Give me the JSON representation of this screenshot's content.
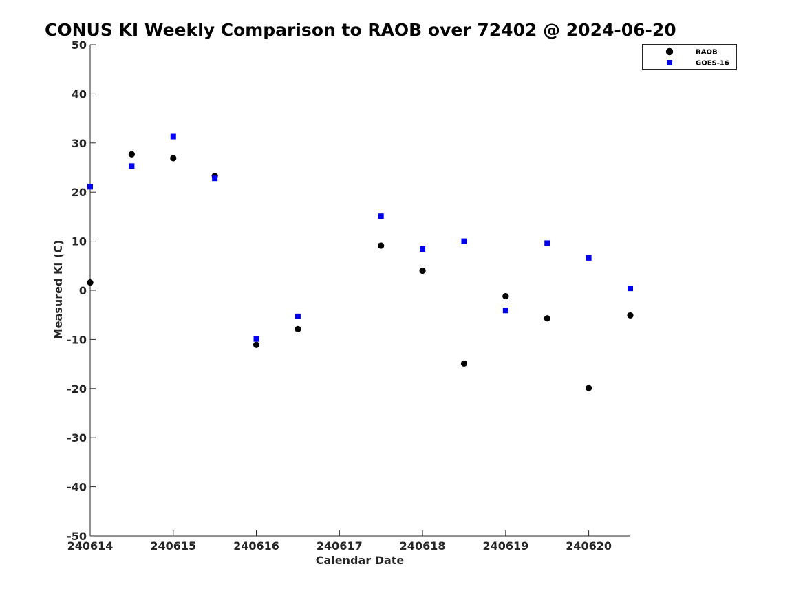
{
  "chart_data": {
    "type": "scatter",
    "title": "CONUS KI Weekly Comparison to RAOB over 72402 @ 2024-06-20",
    "xlabel": "Calendar Date",
    "ylabel": "Measured KI (C)",
    "xlim": [
      240614,
      240620.5
    ],
    "ylim": [
      -50,
      50
    ],
    "x_ticks": [
      {
        "value": 240614,
        "label": "240614"
      },
      {
        "value": 240615,
        "label": "240615"
      },
      {
        "value": 240616,
        "label": "240616"
      },
      {
        "value": 240617,
        "label": "240617"
      },
      {
        "value": 240618,
        "label": "240618"
      },
      {
        "value": 240619,
        "label": "240619"
      },
      {
        "value": 240620,
        "label": "240620"
      }
    ],
    "y_ticks": [
      {
        "value": 50,
        "label": "50"
      },
      {
        "value": 40,
        "label": "40"
      },
      {
        "value": 30,
        "label": "30"
      },
      {
        "value": 20,
        "label": "20"
      },
      {
        "value": 10,
        "label": "10"
      },
      {
        "value": 0,
        "label": "0"
      },
      {
        "value": -10,
        "label": "-10"
      },
      {
        "value": -20,
        "label": "-20"
      },
      {
        "value": -30,
        "label": "-30"
      },
      {
        "value": -40,
        "label": "-40"
      },
      {
        "value": -50,
        "label": "-50"
      }
    ],
    "grid": false,
    "legend_position": "top-right",
    "series": [
      {
        "name": "RAOB",
        "marker": "circle",
        "color": "#000000",
        "points": [
          {
            "x": 240614.0,
            "y": 1.6
          },
          {
            "x": 240614.5,
            "y": 27.7
          },
          {
            "x": 240615.0,
            "y": 26.9
          },
          {
            "x": 240615.5,
            "y": 23.3
          },
          {
            "x": 240616.0,
            "y": -11.1
          },
          {
            "x": 240616.5,
            "y": -7.9
          },
          {
            "x": 240617.5,
            "y": 9.1
          },
          {
            "x": 240618.0,
            "y": 4.0
          },
          {
            "x": 240618.5,
            "y": -14.9
          },
          {
            "x": 240619.0,
            "y": -1.2
          },
          {
            "x": 240619.5,
            "y": -5.7
          },
          {
            "x": 240620.0,
            "y": -19.9
          },
          {
            "x": 240620.5,
            "y": -5.1
          }
        ]
      },
      {
        "name": "GOES-16",
        "marker": "square",
        "color": "#0000ee",
        "points": [
          {
            "x": 240614.0,
            "y": 21.1
          },
          {
            "x": 240614.5,
            "y": 25.3
          },
          {
            "x": 240615.0,
            "y": 31.3
          },
          {
            "x": 240615.5,
            "y": 22.8
          },
          {
            "x": 240616.0,
            "y": -9.9
          },
          {
            "x": 240616.5,
            "y": -5.3
          },
          {
            "x": 240617.5,
            "y": 15.1
          },
          {
            "x": 240618.0,
            "y": 8.4
          },
          {
            "x": 240618.5,
            "y": 10.0
          },
          {
            "x": 240619.0,
            "y": -4.1
          },
          {
            "x": 240619.5,
            "y": 9.6
          },
          {
            "x": 240620.0,
            "y": 6.6
          },
          {
            "x": 240620.5,
            "y": 0.4
          }
        ]
      }
    ]
  }
}
